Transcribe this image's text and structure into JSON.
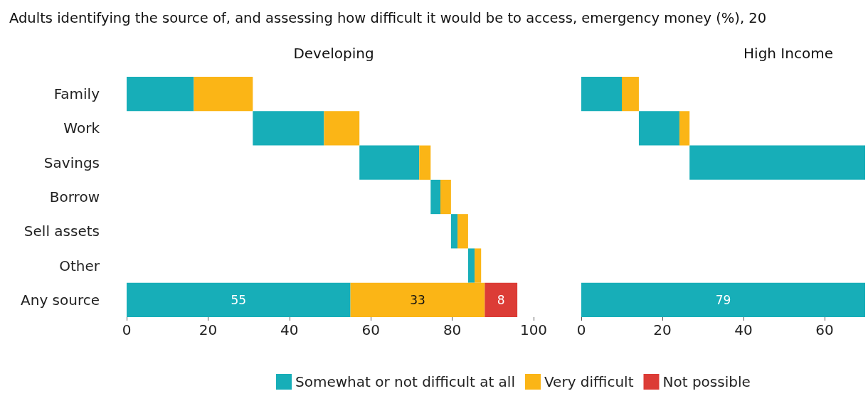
{
  "chart_data": [
    {
      "type": "bar",
      "title": "Adults identifying the source of, and assessing how difficult it would be to access, emergency money (%), 20",
      "subtitle": "Developing",
      "orientation": "horizontal",
      "categories": [
        "Family",
        "Work",
        "Savings",
        "Borrow",
        "Sell assets",
        "Other",
        "Any source"
      ],
      "series": [
        {
          "name": "Somewhat or not difficult at all",
          "color": "#17aeb8",
          "base": [
            0,
            31,
            57.2,
            74.7,
            79.7,
            83.9,
            0
          ],
          "values": [
            16.5,
            17.5,
            14.7,
            2.4,
            1.6,
            1.6,
            55
          ],
          "value_labels": [
            null,
            null,
            null,
            null,
            null,
            null,
            "55"
          ]
        },
        {
          "name": "Very difficult",
          "color": "#fbb516",
          "base": [
            16.5,
            48.5,
            71.9,
            77.1,
            81.3,
            85.5,
            55
          ],
          "values": [
            14.5,
            8.7,
            2.8,
            2.6,
            2.6,
            1.6,
            33
          ],
          "value_labels": [
            null,
            null,
            null,
            null,
            null,
            null,
            "33"
          ]
        },
        {
          "name": "Not possible",
          "color": "#dc3c36",
          "base": [
            null,
            null,
            null,
            null,
            null,
            null,
            88
          ],
          "values": [
            null,
            null,
            null,
            null,
            null,
            null,
            8
          ],
          "value_labels": [
            null,
            null,
            null,
            null,
            null,
            null,
            "8"
          ]
        }
      ],
      "xlim": [
        0,
        100
      ],
      "xticks": [
        0,
        20,
        40,
        60,
        80,
        100
      ],
      "grid": false,
      "legend": "bottom"
    },
    {
      "type": "bar",
      "title": "High Income",
      "orientation": "horizontal",
      "categories": [
        null,
        null,
        null,
        null,
        null,
        null,
        null
      ],
      "series": [
        {
          "color": "#17aeb8",
          "base": [
            0,
            14.2,
            26.7,
            null,
            null,
            null,
            0
          ],
          "values": [
            10,
            10,
            43.3,
            null,
            null,
            null,
            79
          ],
          "value_labels": [
            null,
            null,
            null,
            null,
            null,
            null,
            "79"
          ]
        },
        {
          "color": "#fbb516",
          "base": [
            10,
            24.2,
            null,
            null,
            null,
            null,
            null
          ],
          "values": [
            4.2,
            2.5,
            null,
            null,
            null,
            null,
            null
          ]
        }
      ],
      "xlim": [
        0,
        70
      ],
      "xticks": [
        0,
        20,
        40,
        60
      ],
      "grid": false,
      "tick_labels": "x"
    }
  ]
}
